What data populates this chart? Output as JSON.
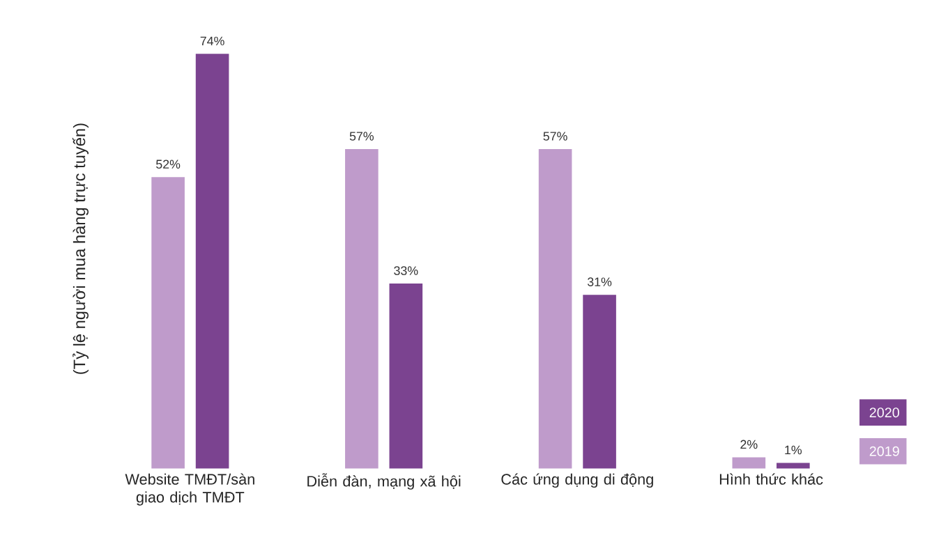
{
  "chart_data": {
    "type": "bar",
    "ylabel": "(Tỷ lệ người mua hàng trực tuyến)",
    "categories": [
      "Website TMĐT/sàn giao dịch TMĐT",
      "Diễn đàn, mạng xã hội",
      "Các ứng dụng di động",
      "Hình thức khác"
    ],
    "series": [
      {
        "name": "2019",
        "color": "#bf9bcb",
        "values": [
          52,
          57,
          57,
          2
        ],
        "value_labels": [
          "52%",
          "57%",
          "57%",
          "2%"
        ]
      },
      {
        "name": "2020",
        "color": "#7b4390",
        "values": [
          74,
          33,
          31,
          1
        ],
        "value_labels": [
          "74%",
          "33%",
          "31%",
          "1%"
        ]
      }
    ],
    "legend": "bottom right",
    "tick_labels": "x"
  }
}
